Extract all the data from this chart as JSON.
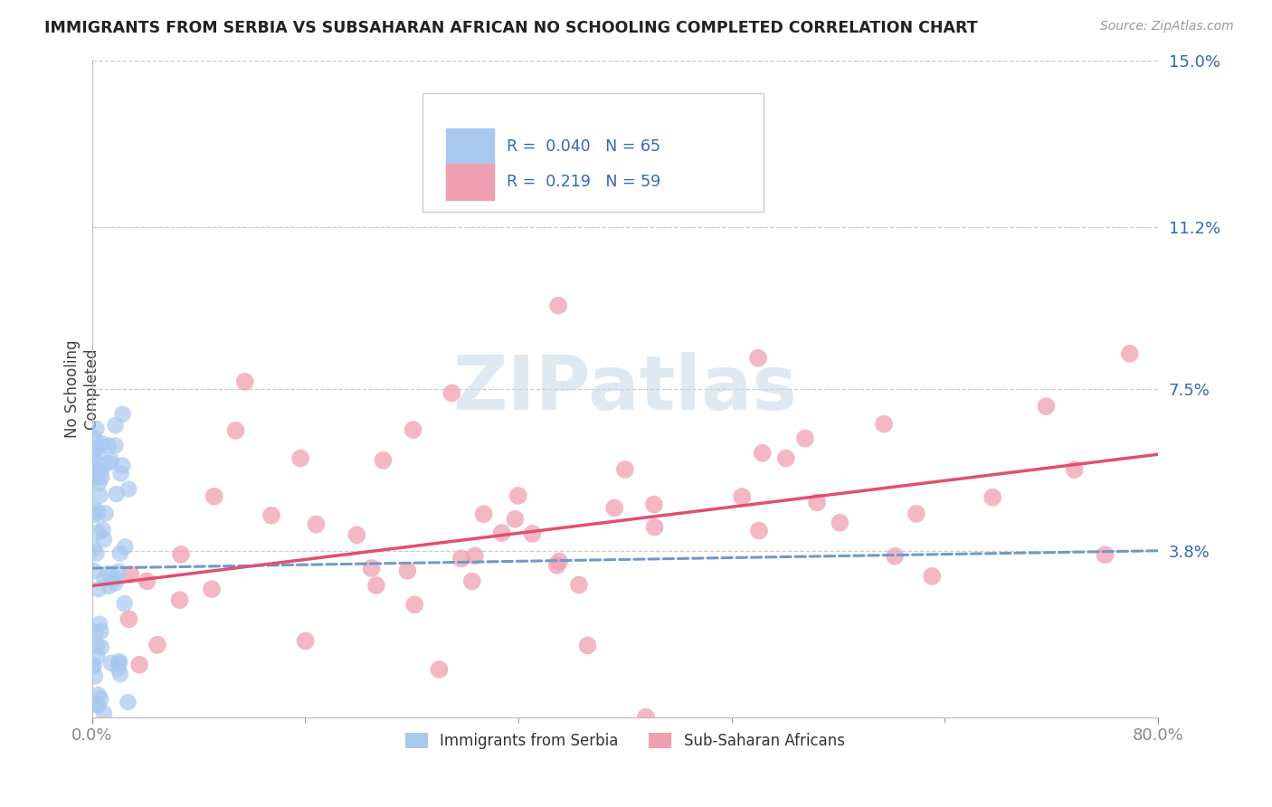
{
  "title": "IMMIGRANTS FROM SERBIA VS SUBSAHARAN AFRICAN NO SCHOOLING COMPLETED CORRELATION CHART",
  "source": "Source: ZipAtlas.com",
  "ylabel": "No Schooling\nCompleted",
  "xlim": [
    0.0,
    0.8
  ],
  "ylim": [
    0.0,
    0.15
  ],
  "yticks_right": [
    0.038,
    0.075,
    0.112,
    0.15
  ],
  "ytick_labels_right": [
    "3.8%",
    "7.5%",
    "11.2%",
    "15.0%"
  ],
  "series1_name": "Immigrants from Serbia",
  "series1_color": "#a8c8f0",
  "series1_line_color": "#7099cc",
  "series1_R": 0.04,
  "series1_N": 65,
  "series2_name": "Sub-Saharan Africans",
  "series2_color": "#f0a0b0",
  "series2_line_color": "#e05070",
  "series2_R": 0.219,
  "series2_N": 59,
  "background_color": "#ffffff",
  "grid_color": "#cccccc",
  "watermark": "ZIPatlas",
  "serbia_trend_start_y": 0.034,
  "serbia_trend_end_y": 0.038,
  "africa_trend_start_y": 0.03,
  "africa_trend_end_y": 0.06
}
